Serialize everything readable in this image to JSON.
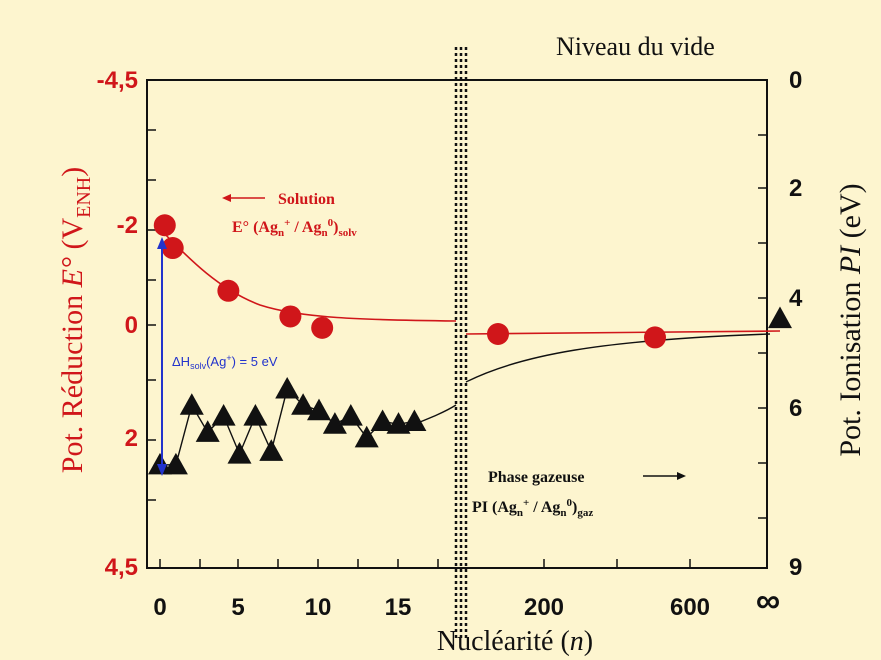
{
  "chart_data": {
    "type": "scatter",
    "title": "",
    "x_axis": {
      "label_main": "Nucléarité (",
      "label_var": "n",
      "label_end": ")",
      "ticks": [
        "0",
        "5",
        "10",
        "15",
        "200",
        "600",
        "∞"
      ]
    },
    "y_left": {
      "label_main": "Pot. Réduction ",
      "label_var": "E°",
      "label_paren": " (V",
      "label_sub": "ENH",
      "label_end": ")",
      "ticks": [
        "-4,5",
        "-2",
        "0",
        "2",
        "4,5"
      ],
      "color": "#d0161a"
    },
    "y_right": {
      "label_main": "Pot. Ionisation ",
      "label_var": "PI",
      "label_end": " (eV)",
      "ticks": [
        "0",
        "2",
        "4",
        "6",
        "9"
      ],
      "top_label": "Niveau du vide"
    },
    "separator_label": "",
    "series": [
      {
        "name": "E° (Agn+ / Agn0)solv",
        "color": "#d0161a",
        "marker": "circle",
        "axis": "left",
        "points": [
          {
            "x": 0.3,
            "y": -1.75
          },
          {
            "x": 0.8,
            "y": -1.35
          },
          {
            "x": 4.3,
            "y": -0.6
          },
          {
            "x": 8.2,
            "y": -0.15
          },
          {
            "x": 10.2,
            "y": 0.05
          },
          {
            "x": 190,
            "y": 0.07
          },
          {
            "x": 500,
            "y": 0.13
          }
        ]
      },
      {
        "name": "PI (Agn+ / Agn0)gaz",
        "color": "#111111",
        "marker": "triangle",
        "axis": "right",
        "points": [
          {
            "x": 0,
            "y": 7.1
          },
          {
            "x": 1,
            "y": 7.1
          },
          {
            "x": 2,
            "y": 6.0
          },
          {
            "x": 3,
            "y": 6.5
          },
          {
            "x": 4,
            "y": 6.2
          },
          {
            "x": 5,
            "y": 6.9
          },
          {
            "x": 6,
            "y": 6.2
          },
          {
            "x": 7,
            "y": 6.85
          },
          {
            "x": 8,
            "y": 5.7
          },
          {
            "x": 9,
            "y": 6.0
          },
          {
            "x": 10,
            "y": 6.1
          },
          {
            "x": 11,
            "y": 6.35
          },
          {
            "x": 12,
            "y": 6.2
          },
          {
            "x": 13,
            "y": 6.6
          },
          {
            "x": 14,
            "y": 6.3
          },
          {
            "x": 15,
            "y": 6.35
          },
          {
            "x": 16,
            "y": 6.3
          },
          {
            "x": "∞",
            "y": 4.4
          }
        ]
      }
    ],
    "annotations": {
      "solution_label": "Solution",
      "solution_formula": "E° (Ag",
      "solution_formula_sub_n": "n",
      "solution_formula_sup_plus": "+",
      "solution_formula_sep": " / Ag",
      "solution_formula_sup_zero": "0",
      "solution_formula_close": ")",
      "solution_formula_sub": "solv",
      "gas_label": "Phase gazeuse",
      "gas_formula": "PI (Ag",
      "gas_formula_sub": "gaz",
      "delta_h_main": "ΔH",
      "delta_h_sub": "solv",
      "delta_h_rest": "(Ag",
      "delta_h_sup": "+",
      "delta_h_value": ") = 5 eV"
    }
  }
}
